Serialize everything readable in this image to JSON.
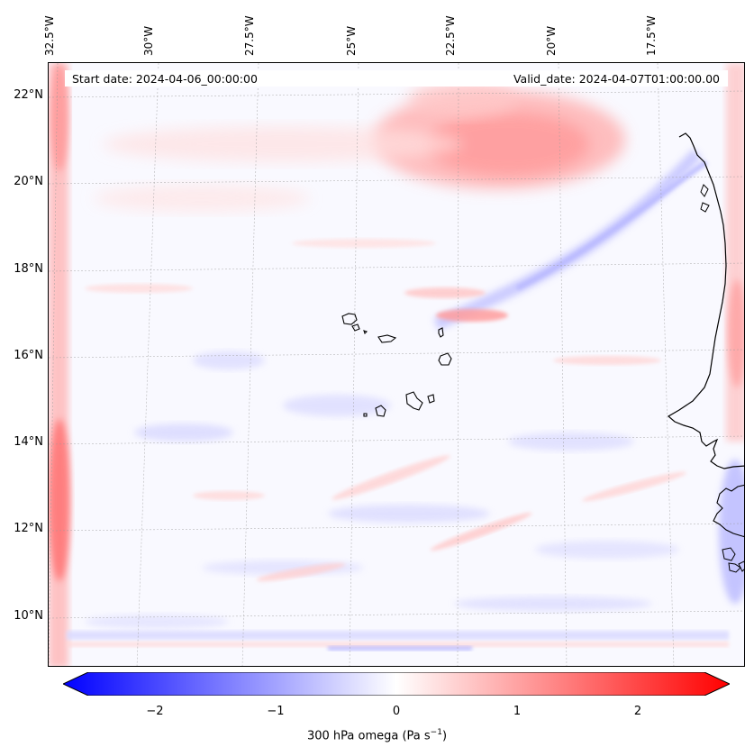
{
  "map": {
    "start_date": "Start date: 2024-04-06_00:00:00",
    "valid_date": "Valid_date: 2024-04-07T01:00:00.00",
    "lon_labels": [
      "32.5°W",
      "30°W",
      "27.5°W",
      "25°W",
      "22.5°W",
      "20°W",
      "17.5°W"
    ],
    "lat_labels": [
      "22°N",
      "20°N",
      "18°N",
      "16°N",
      "14°N",
      "12°N",
      "10°N"
    ],
    "colors": {
      "positive": "#ff0000",
      "negative": "#0000ff",
      "zero": "#ffffff",
      "coastline": "#000000"
    }
  },
  "colorbar": {
    "label": "300 hPa omega (Pa s",
    "label_sup": "−1",
    "label_end": ")",
    "ticks": [
      "−2",
      "−1",
      "0",
      "1",
      "2"
    ],
    "range": [
      -2.6,
      2.6
    ],
    "extend": "both"
  }
}
